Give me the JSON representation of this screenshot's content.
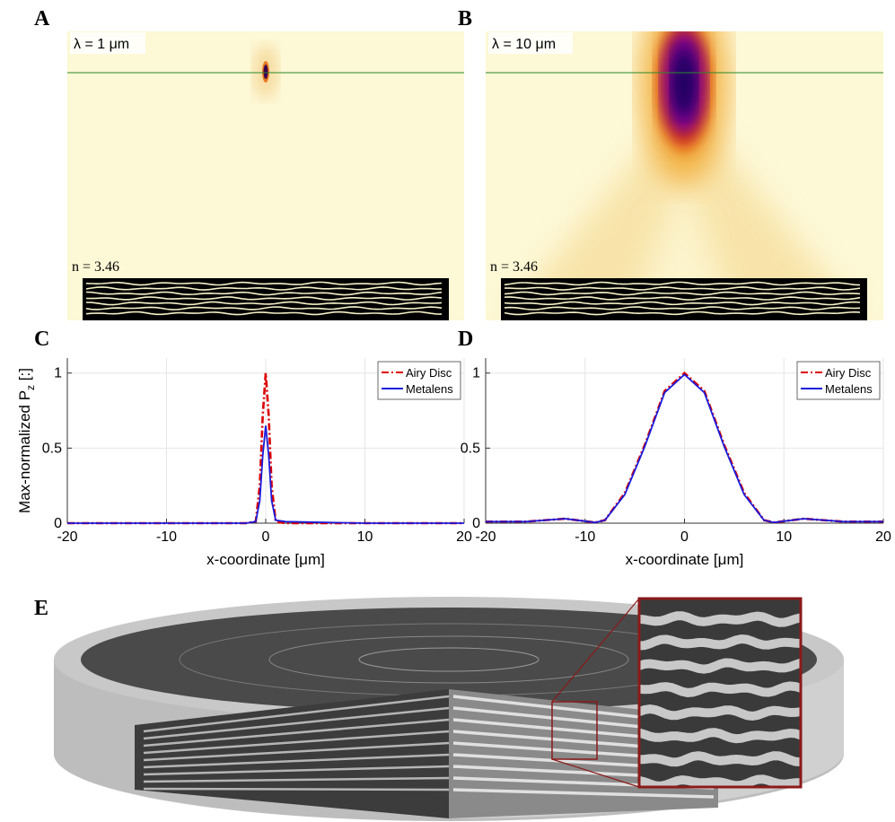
{
  "field_maps": [
    {
      "label": "A",
      "wavelength": "λ = 1 μm",
      "index": "n = 3.46"
    },
    {
      "label": "B",
      "wavelength": "λ = 10 μm",
      "index": "n = 3.46"
    }
  ],
  "render": {
    "label": "E"
  },
  "chart_data": [
    {
      "type": "line",
      "label": "C",
      "xlabel": "x-coordinate [μm]",
      "ylabel": {
        "text": "Max-normalized P",
        "sub": "z",
        "suffix": " [:]"
      },
      "x": [
        -20,
        -10,
        -2,
        -1,
        -0.6,
        -0.3,
        0,
        0.3,
        0.6,
        1,
        2,
        10,
        20
      ],
      "series": [
        {
          "name": "Airy Disc",
          "color": "#dd0000",
          "linestyle": "dashdot",
          "values": [
            0,
            0,
            0,
            0.01,
            0.25,
            0.72,
            1,
            0.72,
            0.25,
            0.01,
            0,
            0,
            0
          ]
        },
        {
          "name": "Metalens",
          "color": "#1a1adc",
          "linestyle": "solid",
          "values": [
            0,
            0,
            0,
            0.01,
            0.15,
            0.45,
            0.65,
            0.45,
            0.15,
            0.02,
            0.01,
            0,
            0
          ]
        }
      ],
      "xlim": [
        -20,
        20
      ],
      "xticks": [
        -20,
        -10,
        0,
        10,
        20
      ],
      "ylim": [
        0,
        1.1
      ],
      "yticks": [
        0,
        0.5,
        1
      ],
      "grid": true,
      "legend": "upper-right"
    },
    {
      "type": "line",
      "label": "D",
      "xlabel": "x-coordinate [μm]",
      "x": [
        -20,
        -16,
        -12,
        -9,
        -8,
        -6,
        -4,
        -2,
        0,
        2,
        4,
        6,
        8,
        9,
        12,
        16,
        20
      ],
      "series": [
        {
          "name": "Airy Disc",
          "color": "#dd0000",
          "linestyle": "dashdot",
          "values": [
            0.01,
            0.01,
            0.03,
            0.005,
            0.02,
            0.2,
            0.52,
            0.88,
            1,
            0.88,
            0.52,
            0.2,
            0.02,
            0.005,
            0.03,
            0.01,
            0.01
          ]
        },
        {
          "name": "Metalens",
          "color": "#1a1adc",
          "linestyle": "solid",
          "values": [
            0.01,
            0.01,
            0.03,
            0.005,
            0.02,
            0.19,
            0.51,
            0.87,
            0.99,
            0.87,
            0.51,
            0.19,
            0.02,
            0.005,
            0.03,
            0.01,
            0.01
          ]
        }
      ],
      "xlim": [
        -20,
        20
      ],
      "xticks": [
        -20,
        -10,
        0,
        10,
        20
      ],
      "ylim": [
        0,
        1.1
      ],
      "yticks": [
        0,
        0.5,
        1
      ],
      "grid": true,
      "legend": "upper-right"
    }
  ]
}
